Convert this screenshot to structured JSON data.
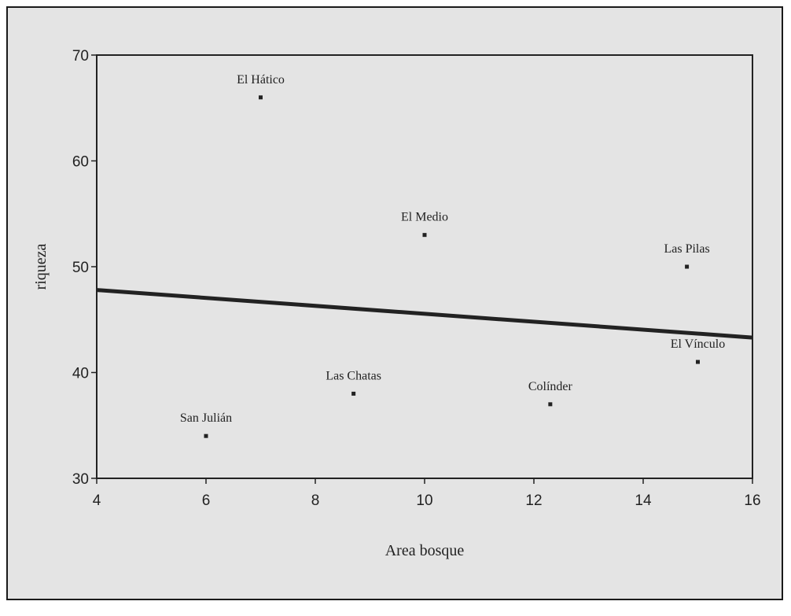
{
  "chart_data": {
    "type": "scatter",
    "xlabel": "Area bosque",
    "ylabel": "riqueza",
    "xlim": [
      4,
      16
    ],
    "ylim": [
      30,
      70
    ],
    "xticks": [
      4,
      6,
      8,
      10,
      12,
      14,
      16
    ],
    "yticks": [
      30,
      40,
      50,
      60,
      70
    ],
    "grid": false,
    "points": [
      {
        "label": "El Hático",
        "x": 7.0,
        "y": 66.0
      },
      {
        "label": "El Medio",
        "x": 10.0,
        "y": 53.0
      },
      {
        "label": "Las Pilas",
        "x": 14.8,
        "y": 50.0
      },
      {
        "label": "El Vínculo",
        "x": 15.0,
        "y": 41.0
      },
      {
        "label": "Las Chatas",
        "x": 8.7,
        "y": 38.0
      },
      {
        "label": "Colínder",
        "x": 12.3,
        "y": 37.0
      },
      {
        "label": "San Julián",
        "x": 6.0,
        "y": 34.0
      }
    ],
    "fit_line": {
      "x": [
        4,
        16
      ],
      "y": [
        47.8,
        43.3
      ]
    }
  },
  "colors": {
    "panel": "#e4e4e4",
    "ink": "#222222",
    "fit_line": "#222222"
  }
}
